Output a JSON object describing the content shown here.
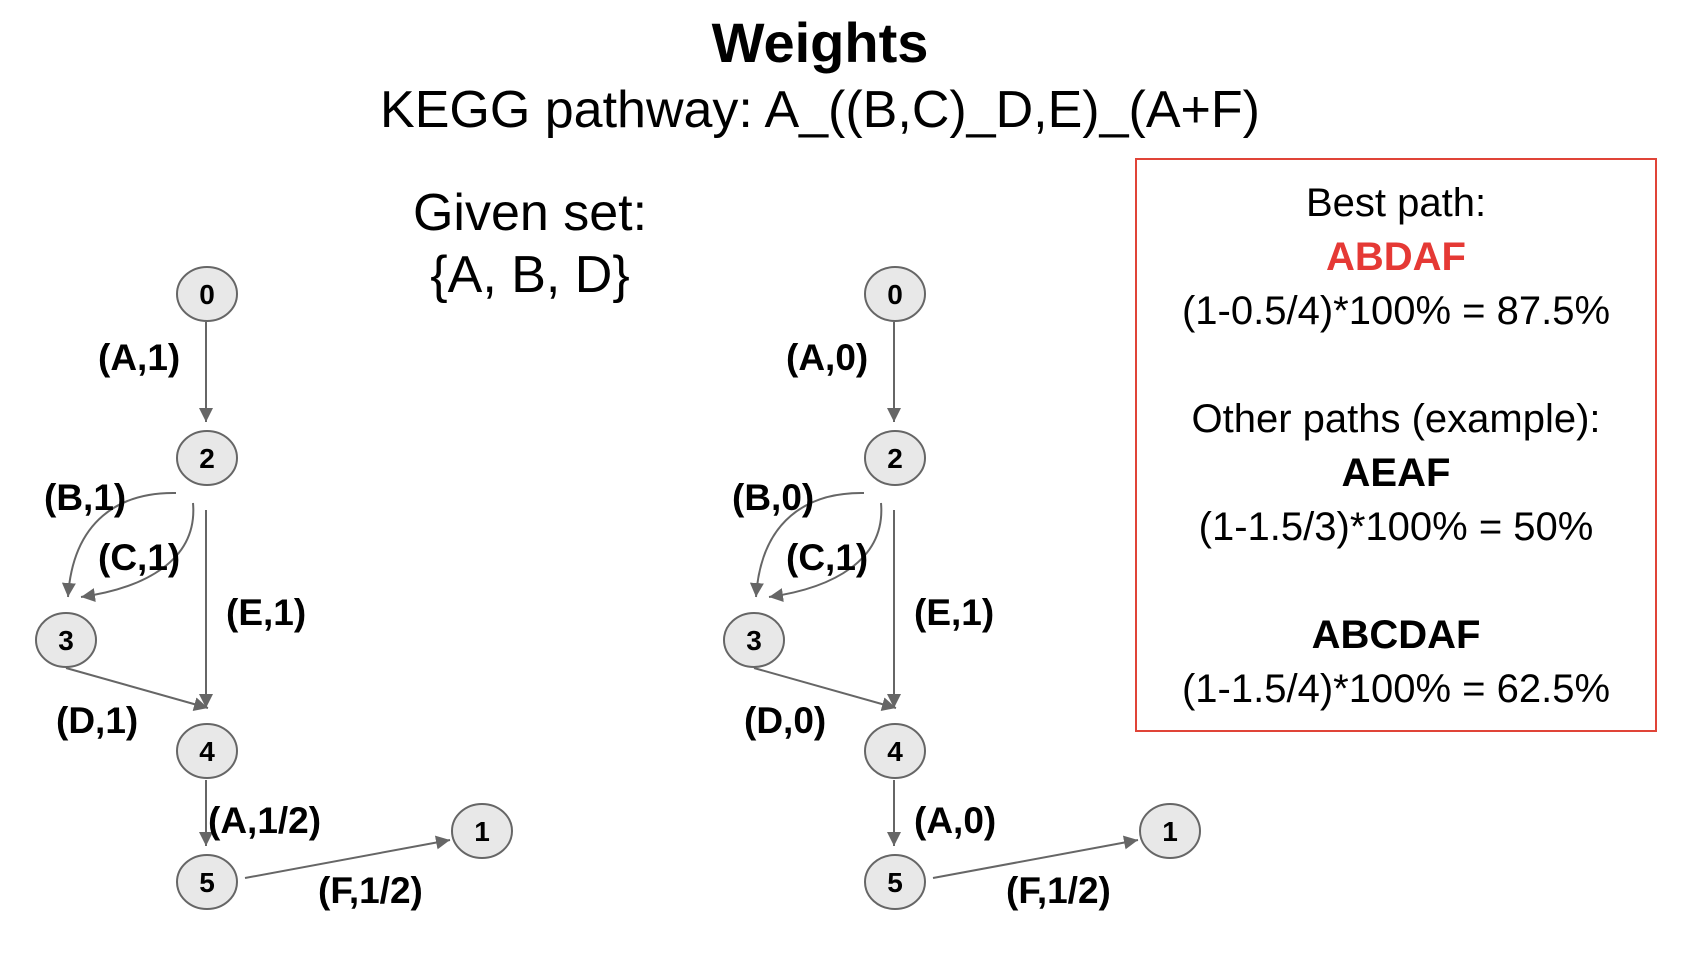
{
  "title": "Weights",
  "subtitle": "KEGG pathway: A_((B,C)_D,E)_(A+F)",
  "given_set": {
    "label": "Given set:",
    "value": "{A, B, D}"
  },
  "info_box": {
    "best_label": "Best path:",
    "best_path": "ABDAF",
    "best_formula": "(1-0.5/4)*100% = 87.5%",
    "other_label": "Other paths (example):",
    "other_paths": [
      {
        "path": "AEAF",
        "formula": "(1-1.5/3)*100% = 50%"
      },
      {
        "path": "ABCDAF",
        "formula": "(1-1.5/4)*100% = 62.5%"
      }
    ],
    "best_color": "#e53935",
    "border_color": "#e04438"
  },
  "graphs": [
    {
      "nodes": [
        "0",
        "2",
        "3",
        "4",
        "5",
        "1"
      ],
      "edges": [
        {
          "from": "0",
          "to": "2",
          "label": "(A,1)"
        },
        {
          "from": "2",
          "to": "3",
          "label": "(B,1)"
        },
        {
          "from": "2",
          "to": "3",
          "label": "(C,1)"
        },
        {
          "from": "2",
          "to": "4",
          "label": "(E,1)"
        },
        {
          "from": "3",
          "to": "4",
          "label": "(D,1)"
        },
        {
          "from": "4",
          "to": "5",
          "label": "(A,1/2)"
        },
        {
          "from": "5",
          "to": "1",
          "label": "(F,1/2)"
        }
      ]
    },
    {
      "nodes": [
        "0",
        "2",
        "3",
        "4",
        "5",
        "1"
      ],
      "edges": [
        {
          "from": "0",
          "to": "2",
          "label": "(A,0)"
        },
        {
          "from": "2",
          "to": "3",
          "label": "(B,0)"
        },
        {
          "from": "2",
          "to": "3",
          "label": "(C,1)"
        },
        {
          "from": "2",
          "to": "4",
          "label": "(E,1)"
        },
        {
          "from": "3",
          "to": "4",
          "label": "(D,0)"
        },
        {
          "from": "4",
          "to": "5",
          "label": "(A,0)"
        },
        {
          "from": "5",
          "to": "1",
          "label": "(F,1/2)"
        }
      ]
    }
  ]
}
